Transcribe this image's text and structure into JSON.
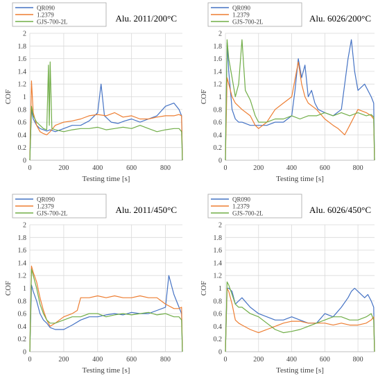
{
  "colors": {
    "QR090": "#4472c4",
    "1.2379": "#ed7d31",
    "GJS-700-2L": "#70ad47"
  },
  "chart_data": [
    {
      "type": "line",
      "title": "Alu. 2011/200°C",
      "xlabel": "Testing time [s]",
      "ylabel": "COF",
      "xlim": [
        0,
        900
      ],
      "ylim": [
        0,
        2
      ],
      "xticks": [
        0,
        200,
        400,
        600,
        800
      ],
      "yticks": [
        0,
        0.2,
        0.4,
        0.6,
        0.8,
        1,
        1.2,
        1.4,
        1.6,
        1.8,
        2
      ],
      "legend": "top-left",
      "grid": true,
      "series": [
        {
          "name": "QR090",
          "x": [
            0,
            10,
            20,
            40,
            60,
            80,
            100,
            120,
            150,
            200,
            250,
            300,
            350,
            400,
            420,
            440,
            480,
            520,
            560,
            600,
            650,
            700,
            750,
            800,
            850,
            880,
            895,
            900
          ],
          "y": [
            0,
            0.8,
            0.65,
            0.55,
            0.5,
            0.48,
            0.46,
            0.48,
            0.45,
            0.5,
            0.55,
            0.55,
            0.62,
            0.75,
            1.2,
            0.7,
            0.6,
            0.58,
            0.62,
            0.65,
            0.6,
            0.65,
            0.7,
            0.85,
            0.9,
            0.8,
            0.7,
            0
          ]
        },
        {
          "name": "1.2379",
          "x": [
            0,
            10,
            20,
            40,
            60,
            80,
            100,
            120,
            150,
            200,
            250,
            300,
            350,
            400,
            450,
            500,
            550,
            600,
            650,
            700,
            750,
            800,
            850,
            880,
            895,
            900
          ],
          "y": [
            0,
            1.25,
            0.75,
            0.55,
            0.45,
            0.42,
            0.4,
            0.45,
            0.55,
            0.6,
            0.62,
            0.65,
            0.7,
            0.72,
            0.7,
            0.75,
            0.68,
            0.7,
            0.65,
            0.65,
            0.68,
            0.7,
            0.7,
            0.72,
            0.7,
            0
          ]
        },
        {
          "name": "GJS-700-2L",
          "x": [
            0,
            10,
            20,
            40,
            60,
            80,
            100,
            110,
            115,
            120,
            130,
            150,
            200,
            250,
            300,
            350,
            400,
            450,
            500,
            550,
            600,
            650,
            700,
            750,
            800,
            850,
            880,
            895,
            900
          ],
          "y": [
            0,
            0.85,
            0.7,
            0.6,
            0.55,
            0.5,
            0.48,
            1.5,
            0.55,
            1.55,
            0.5,
            0.48,
            0.45,
            0.48,
            0.5,
            0.5,
            0.52,
            0.48,
            0.5,
            0.52,
            0.5,
            0.55,
            0.5,
            0.45,
            0.48,
            0.5,
            0.5,
            0.45,
            0
          ]
        }
      ]
    },
    {
      "type": "line",
      "title": "Alu. 6026/200°C",
      "xlabel": "Testing time [s]",
      "ylabel": "COF",
      "xlim": [
        0,
        900
      ],
      "ylim": [
        0,
        2
      ],
      "xticks": [
        0,
        200,
        400,
        600,
        800
      ],
      "yticks": [
        0,
        0.2,
        0.4,
        0.6,
        0.8,
        1,
        1.2,
        1.4,
        1.6,
        1.8,
        2
      ],
      "legend": "top-left",
      "grid": true,
      "series": [
        {
          "name": "QR090",
          "x": [
            0,
            10,
            20,
            40,
            60,
            80,
            100,
            150,
            200,
            250,
            300,
            350,
            400,
            420,
            440,
            460,
            480,
            500,
            520,
            540,
            560,
            600,
            650,
            700,
            740,
            760,
            780,
            800,
            840,
            880,
            895,
            900
          ],
          "y": [
            0,
            1.85,
            1.4,
            0.8,
            0.65,
            0.6,
            0.6,
            0.55,
            0.55,
            0.55,
            0.6,
            0.6,
            0.7,
            1.1,
            1.6,
            1.3,
            1.5,
            1.0,
            1.1,
            0.9,
            0.8,
            0.75,
            0.7,
            0.8,
            1.6,
            1.9,
            1.4,
            1.1,
            1.2,
            1.0,
            0.9,
            0
          ]
        },
        {
          "name": "1.2379",
          "x": [
            0,
            10,
            20,
            40,
            60,
            80,
            100,
            150,
            180,
            200,
            250,
            300,
            350,
            400,
            440,
            460,
            480,
            500,
            550,
            600,
            650,
            680,
            700,
            720,
            750,
            780,
            800,
            850,
            880,
            895,
            900
          ],
          "y": [
            0,
            1.3,
            1.2,
            1.0,
            0.9,
            0.85,
            0.8,
            0.7,
            0.55,
            0.5,
            0.6,
            0.8,
            0.9,
            1.0,
            1.55,
            1.2,
            1.0,
            0.9,
            0.8,
            0.65,
            0.55,
            0.5,
            0.45,
            0.4,
            0.55,
            0.7,
            0.8,
            0.75,
            0.7,
            0.65,
            0
          ]
        },
        {
          "name": "GJS-700-2L",
          "x": [
            0,
            10,
            20,
            40,
            60,
            80,
            100,
            120,
            150,
            180,
            200,
            250,
            300,
            350,
            400,
            450,
            500,
            550,
            600,
            650,
            700,
            750,
            800,
            850,
            880,
            895,
            900
          ],
          "y": [
            0,
            1.9,
            1.6,
            1.3,
            1.0,
            1.2,
            1.9,
            1.1,
            0.95,
            0.7,
            0.6,
            0.6,
            0.65,
            0.65,
            0.7,
            0.65,
            0.7,
            0.7,
            0.75,
            0.7,
            0.75,
            0.7,
            0.75,
            0.7,
            0.72,
            0.68,
            0
          ]
        }
      ]
    },
    {
      "type": "line",
      "title": "Alu. 2011/450°C",
      "xlabel": "Testing time [s]",
      "ylabel": "COF",
      "xlim": [
        0,
        900
      ],
      "ylim": [
        0,
        2
      ],
      "xticks": [
        0,
        200,
        400,
        600,
        800
      ],
      "yticks": [
        0,
        0.2,
        0.4,
        0.6,
        0.8,
        1,
        1.2,
        1.4,
        1.6,
        1.8,
        2
      ],
      "legend": "top-left",
      "grid": true,
      "series": [
        {
          "name": "QR090",
          "x": [
            0,
            10,
            20,
            40,
            60,
            80,
            100,
            120,
            150,
            200,
            250,
            300,
            350,
            400,
            450,
            500,
            550,
            600,
            650,
            700,
            750,
            800,
            820,
            850,
            880,
            895,
            900
          ],
          "y": [
            0,
            1.05,
            0.95,
            0.8,
            0.6,
            0.5,
            0.45,
            0.38,
            0.35,
            0.35,
            0.42,
            0.5,
            0.55,
            0.55,
            0.58,
            0.6,
            0.58,
            0.62,
            0.6,
            0.6,
            0.65,
            0.7,
            1.2,
            0.9,
            0.7,
            0.6,
            0
          ]
        },
        {
          "name": "1.2379",
          "x": [
            0,
            10,
            20,
            40,
            60,
            80,
            100,
            120,
            150,
            200,
            250,
            280,
            300,
            350,
            400,
            450,
            500,
            550,
            600,
            650,
            700,
            750,
            800,
            850,
            880,
            895,
            900
          ],
          "y": [
            0,
            1.35,
            1.25,
            1.1,
            0.85,
            0.65,
            0.5,
            0.4,
            0.45,
            0.55,
            0.6,
            0.65,
            0.85,
            0.85,
            0.88,
            0.85,
            0.88,
            0.85,
            0.85,
            0.88,
            0.85,
            0.85,
            0.75,
            0.68,
            0.68,
            0.7,
            0
          ]
        },
        {
          "name": "GJS-700-2L",
          "x": [
            0,
            10,
            20,
            40,
            60,
            80,
            100,
            120,
            150,
            200,
            250,
            300,
            350,
            400,
            450,
            500,
            550,
            600,
            650,
            700,
            750,
            800,
            850,
            880,
            895,
            900
          ],
          "y": [
            0,
            1.3,
            1.2,
            1.0,
            0.75,
            0.6,
            0.5,
            0.45,
            0.45,
            0.5,
            0.55,
            0.55,
            0.6,
            0.6,
            0.55,
            0.58,
            0.6,
            0.58,
            0.6,
            0.62,
            0.58,
            0.6,
            0.55,
            0.55,
            0.5,
            0
          ]
        }
      ]
    },
    {
      "type": "line",
      "title": "Alu. 6026/450°C",
      "xlabel": "Testing time [s]",
      "ylabel": "COF",
      "xlim": [
        0,
        900
      ],
      "ylim": [
        0,
        2
      ],
      "xticks": [
        0,
        200,
        400,
        600,
        800
      ],
      "yticks": [
        0,
        0.2,
        0.4,
        0.6,
        0.8,
        1,
        1.2,
        1.4,
        1.6,
        1.8,
        2
      ],
      "legend": "top-left",
      "grid": true,
      "series": [
        {
          "name": "QR090",
          "x": [
            0,
            10,
            20,
            40,
            60,
            80,
            100,
            150,
            200,
            250,
            300,
            350,
            400,
            450,
            500,
            550,
            600,
            650,
            700,
            740,
            760,
            780,
            800,
            840,
            860,
            880,
            895,
            900
          ],
          "y": [
            0,
            1.0,
            1.0,
            0.95,
            0.75,
            0.8,
            0.85,
            0.7,
            0.6,
            0.55,
            0.5,
            0.5,
            0.55,
            0.5,
            0.45,
            0.45,
            0.6,
            0.55,
            0.7,
            0.85,
            0.95,
            1.0,
            0.95,
            0.85,
            0.9,
            0.8,
            0.7,
            0
          ]
        },
        {
          "name": "1.2379",
          "x": [
            0,
            10,
            20,
            40,
            60,
            80,
            100,
            150,
            200,
            250,
            300,
            350,
            400,
            450,
            500,
            550,
            600,
            650,
            700,
            750,
            800,
            850,
            880,
            895,
            900
          ],
          "y": [
            0,
            1.0,
            0.95,
            0.75,
            0.5,
            0.45,
            0.42,
            0.35,
            0.3,
            0.35,
            0.4,
            0.45,
            0.48,
            0.48,
            0.45,
            0.45,
            0.45,
            0.42,
            0.45,
            0.42,
            0.42,
            0.45,
            0.5,
            0.55,
            0
          ]
        },
        {
          "name": "GJS-700-2L",
          "x": [
            0,
            10,
            20,
            40,
            60,
            80,
            100,
            150,
            200,
            250,
            300,
            350,
            400,
            450,
            500,
            550,
            600,
            650,
            700,
            750,
            800,
            850,
            880,
            895,
            900
          ],
          "y": [
            0,
            1.1,
            1.05,
            0.9,
            0.75,
            0.7,
            0.7,
            0.6,
            0.55,
            0.45,
            0.35,
            0.3,
            0.32,
            0.35,
            0.4,
            0.45,
            0.5,
            0.55,
            0.55,
            0.5,
            0.5,
            0.55,
            0.6,
            0.5,
            0
          ]
        }
      ]
    }
  ]
}
